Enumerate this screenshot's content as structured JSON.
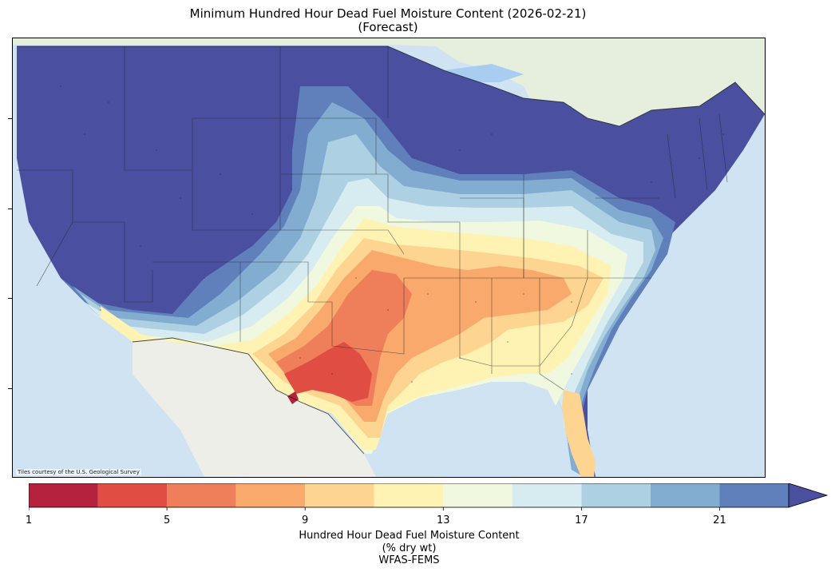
{
  "title": {
    "line1": "Minimum Hundred Hour Dead Fuel Moisture Content (2026-02-21)",
    "line2": "(Forecast)"
  },
  "map": {
    "attribution": "Tiles courtesy of the U.S. Geological Survey",
    "basemap_colors": {
      "ocean": "#cfe3f3",
      "land": "#ece9e0",
      "mexico": "#eeeee8",
      "canada": "#e6eedd",
      "lakes": "#a8cdf0"
    },
    "fuel_moisture_regions": [
      {
        "class": "above 23",
        "color": "#4a4fa0"
      },
      {
        "class": "21-23",
        "color": "#5f80bb"
      },
      {
        "class": "19-21",
        "color": "#83add0"
      },
      {
        "class": "17-19",
        "color": "#add1e3"
      },
      {
        "class": "15-17",
        "color": "#d6ecf1"
      },
      {
        "class": "13-15",
        "color": "#f0f8df"
      },
      {
        "class": "11-13",
        "color": "#fff3b3"
      },
      {
        "class": "9-11",
        "color": "#fdd590"
      },
      {
        "class": "7-9",
        "color": "#f8a96b"
      },
      {
        "class": "5-7",
        "color": "#ef7e5a"
      },
      {
        "class": "3-5",
        "color": "#df4d43"
      },
      {
        "class": "1-3",
        "color": "#b5223e"
      }
    ]
  },
  "colorbar": {
    "label_line1": "Hundred Hour Dead Fuel Moisture Content",
    "label_line2": "(% dry wt)",
    "label_line3": "WFAS-FEMS",
    "ticks": [
      "1",
      "5",
      "9",
      "13",
      "17",
      "21"
    ],
    "extend": "max",
    "bins": [
      {
        "from": 1,
        "to": 3,
        "color": "#b5223e"
      },
      {
        "from": 3,
        "to": 5,
        "color": "#df4d43"
      },
      {
        "from": 5,
        "to": 7,
        "color": "#ef7e5a"
      },
      {
        "from": 7,
        "to": 9,
        "color": "#f8a96b"
      },
      {
        "from": 9,
        "to": 11,
        "color": "#fdd590"
      },
      {
        "from": 11,
        "to": 13,
        "color": "#fff3b3"
      },
      {
        "from": 13,
        "to": 15,
        "color": "#f0f8df"
      },
      {
        "from": 15,
        "to": 17,
        "color": "#d6ecf1"
      },
      {
        "from": 17,
        "to": 19,
        "color": "#add1e3"
      },
      {
        "from": 19,
        "to": 21,
        "color": "#83add0"
      },
      {
        "from": 21,
        "to": 23,
        "color": "#5f80bb"
      }
    ],
    "over_color": "#4a4fa0"
  }
}
